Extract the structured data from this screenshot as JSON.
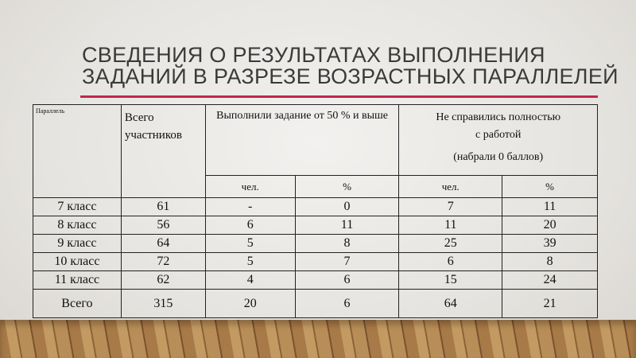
{
  "title": {
    "line1": "СВЕДЕНИЯ О РЕЗУЛЬТАТАХ ВЫПОЛНЕНИЯ",
    "line2": "ЗАДАНИЙ В РАЗРЕЗЕ ВОЗРАСТНЫХ ПАРАЛЛЕЛЕЙ"
  },
  "accent_color": "#c0284a",
  "table": {
    "headers": {
      "parallel": "Параллель",
      "total_line1": "Всего",
      "total_line2": "участников",
      "passed": "Выполнили задание от 50 % и выше",
      "failed_line1": "Не справились полностью",
      "failed_line2": "с работой",
      "failed_line3": "(набрали 0 баллов)",
      "sub": [
        "чел.",
        "%",
        "чел.",
        "%"
      ]
    },
    "rows": [
      [
        "7 класс",
        "61",
        "-",
        "0",
        "7",
        "11"
      ],
      [
        "8 класс",
        "56",
        "6",
        "11",
        "11",
        "20"
      ],
      [
        "9 класс",
        "64",
        "5",
        "8",
        "25",
        "39"
      ],
      [
        "10 класс",
        "72",
        "5",
        "7",
        "6",
        "8"
      ],
      [
        "11 класс",
        "62",
        "4",
        "6",
        "15",
        "24"
      ],
      [
        "Всего",
        "315",
        "20",
        "6",
        "64",
        "21"
      ]
    ]
  }
}
